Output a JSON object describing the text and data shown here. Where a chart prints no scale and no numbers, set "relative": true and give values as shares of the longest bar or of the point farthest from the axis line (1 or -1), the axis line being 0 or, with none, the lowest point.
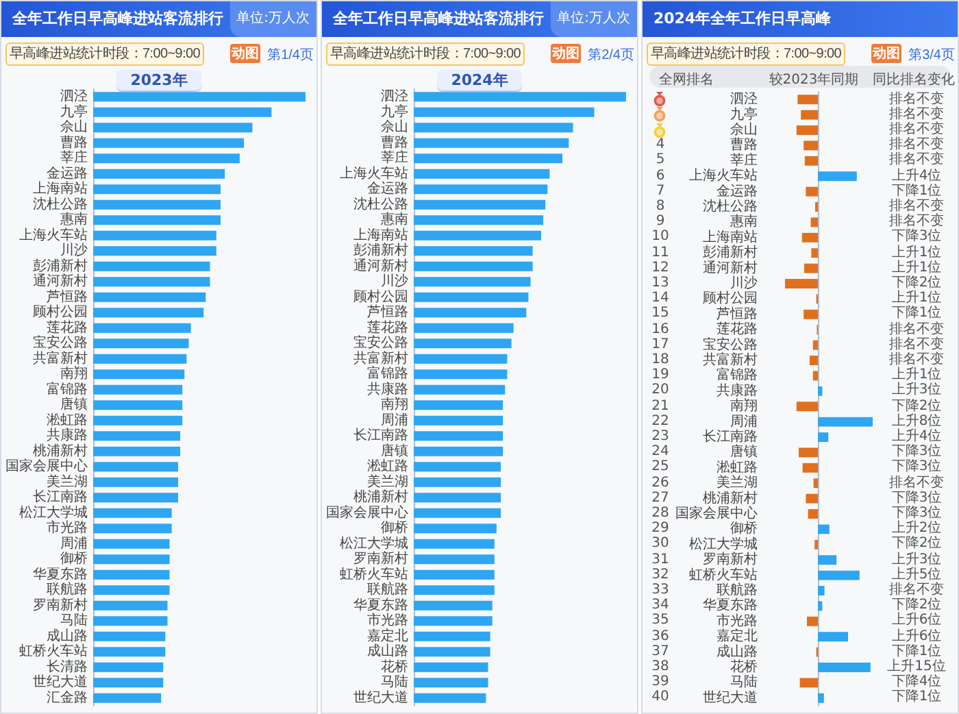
{
  "chart_data": [
    {
      "type": "bar",
      "orientation": "horizontal",
      "relative": true,
      "title": "全年工作日早高峰进站客流排行",
      "subtitle": "2023年",
      "annotations": [
        "单位:万人次",
        "早高峰进站统计时段：7:00~9:00",
        "动图",
        "第1/4页"
      ],
      "color": "#2ea6f2",
      "categories": [
        "泗泾",
        "九亭",
        "佘山",
        "曹路",
        "莘庄",
        "金运路",
        "上海南站",
        "沈杜公路",
        "惠南",
        "上海火车站",
        "川沙",
        "彭浦新村",
        "通河新村",
        "芦恒路",
        "顾村公园",
        "莲花路",
        "宝安公路",
        "共富新村",
        "南翔",
        "富锦路",
        "唐镇",
        "淞虹路",
        "共康路",
        "桃浦新村",
        "国家会展中心",
        "美兰湖",
        "长江南路",
        "松江大学城",
        "市光路",
        "周浦",
        "御桥",
        "华夏东路",
        "联航路",
        "罗南新村",
        "马陆",
        "成山路",
        "虹桥火车站",
        "长清路",
        "世纪大道",
        "汇金路"
      ],
      "values": [
        1,
        0.84,
        0.75,
        0.71,
        0.69,
        0.62,
        0.6,
        0.6,
        0.6,
        0.58,
        0.58,
        0.55,
        0.55,
        0.53,
        0.52,
        0.46,
        0.45,
        0.44,
        0.43,
        0.42,
        0.42,
        0.42,
        0.41,
        0.41,
        0.4,
        0.4,
        0.4,
        0.37,
        0.37,
        0.36,
        0.36,
        0.36,
        0.36,
        0.35,
        0.35,
        0.34,
        0.34,
        0.33,
        0.33,
        0.32
      ]
    },
    {
      "type": "bar",
      "orientation": "horizontal",
      "relative": true,
      "title": "全年工作日早高峰进站客流排行",
      "subtitle": "2024年",
      "annotations": [
        "单位:万人次",
        "早高峰进站统计时段：7:00~9:00",
        "动图",
        "第2/4页"
      ],
      "color": "#2ea6f2",
      "categories": [
        "泗泾",
        "九亭",
        "佘山",
        "曹路",
        "莘庄",
        "上海火车站",
        "金运路",
        "沈杜公路",
        "惠南",
        "上海南站",
        "彭浦新村",
        "通河新村",
        "川沙",
        "顾村公园",
        "芦恒路",
        "莲花路",
        "宝安公路",
        "共富新村",
        "富锦路",
        "共康路",
        "南翔",
        "周浦",
        "长江南路",
        "唐镇",
        "淞虹路",
        "美兰湖",
        "桃浦新村",
        "国家会展中心",
        "御桥",
        "松江大学城",
        "罗南新村",
        "虹桥火车站",
        "联航路",
        "华夏东路",
        "市光路",
        "嘉定北",
        "成山路",
        "花桥",
        "马陆",
        "世纪大道"
      ],
      "values": [
        1,
        0.85,
        0.75,
        0.73,
        0.7,
        0.64,
        0.63,
        0.62,
        0.61,
        0.6,
        0.56,
        0.56,
        0.55,
        0.54,
        0.53,
        0.47,
        0.46,
        0.44,
        0.44,
        0.43,
        0.42,
        0.42,
        0.42,
        0.42,
        0.41,
        0.41,
        0.41,
        0.41,
        0.39,
        0.38,
        0.38,
        0.38,
        0.38,
        0.37,
        0.37,
        0.36,
        0.36,
        0.35,
        0.35,
        0.34
      ]
    },
    {
      "type": "bar",
      "orientation": "horizontal",
      "relative": true,
      "title": "2024年全年工作日早高峰",
      "xlabel": "较2023年同期",
      "annotations": [
        "早高峰进站统计时段：7:00~9:00",
        "动图",
        "第3/4页",
        "全网排名",
        "同比排名变化",
        "排名不变",
        "排名不变",
        "排名不变",
        "排名不变",
        "排名不变",
        "上升4位",
        "下降1位",
        "排名不变",
        "排名不变",
        "下降3位",
        "上升1位",
        "上升1位",
        "下降2位",
        "上升1位",
        "下降1位",
        "排名不变",
        "排名不变",
        "排名不变",
        "上升1位",
        "上升3位",
        "下降2位",
        "上升8位",
        "上升4位",
        "下降3位",
        "下降3位",
        "排名不变",
        "下降3位",
        "下降3位",
        "上升2位",
        "下降2位",
        "上升3位",
        "上升5位",
        "排名不变",
        "下降2位",
        "上升6位",
        "上升6位",
        "下降1位",
        "上升15位",
        "下降4位",
        "下降1位",
        "4",
        "5",
        "6",
        "7",
        "8",
        "9",
        "10",
        "11",
        "12",
        "13",
        "14",
        "15",
        "16",
        "17",
        "18",
        "19",
        "20",
        "21",
        "22",
        "23",
        "24",
        "25",
        "26",
        "27",
        "28",
        "29",
        "30",
        "31",
        "32",
        "33",
        "34",
        "35",
        "36",
        "37",
        "38",
        "39",
        "40"
      ],
      "categories": [
        "泗泾",
        "九亭",
        "佘山",
        "曹路",
        "莘庄",
        "上海火车站",
        "金运路",
        "沈杜公路",
        "惠南",
        "上海南站",
        "彭浦新村",
        "通河新村",
        "川沙",
        "顾村公园",
        "芦恒路",
        "莲花路",
        "宝安公路",
        "共富新村",
        "富锦路",
        "共康路",
        "南翔",
        "周浦",
        "长江南路",
        "唐镇",
        "淞虹路",
        "美兰湖",
        "桃浦新村",
        "国家会展中心",
        "御桥",
        "松江大学城",
        "罗南新村",
        "虹桥火车站",
        "联航路",
        "华夏东路",
        "市光路",
        "嘉定北",
        "成山路",
        "花桥",
        "马陆",
        "世纪大道"
      ],
      "values": [
        -0.37,
        -0.31,
        -0.39,
        -0.26,
        -0.24,
        0.71,
        -0.22,
        -0.05,
        -0.13,
        -0.29,
        -0.12,
        -0.25,
        -0.6,
        -0.03,
        -0.26,
        -0.02,
        -0.09,
        -0.15,
        -0.09,
        0.08,
        -0.39,
        1,
        0.19,
        -0.35,
        -0.28,
        -0.08,
        -0.22,
        -0.18,
        0.21,
        -0.06,
        0.34,
        0.76,
        0.12,
        0.08,
        -0.2,
        0.55,
        -0.03,
        0.96,
        -0.33,
        0.11
      ],
      "colors": [
        "#e0701e",
        "#e0701e",
        "#e0701e",
        "#e0701e",
        "#e0701e",
        "#2ea6f2",
        "#e0701e",
        "#e0701e",
        "#e0701e",
        "#e0701e",
        "#e0701e",
        "#e0701e",
        "#e0701e",
        "#e0701e",
        "#e0701e",
        "#e0701e",
        "#e0701e",
        "#e0701e",
        "#e0701e",
        "#2ea6f2",
        "#e0701e",
        "#2ea6f2",
        "#2ea6f2",
        "#e0701e",
        "#e0701e",
        "#e0701e",
        "#e0701e",
        "#e0701e",
        "#2ea6f2",
        "#e0701e",
        "#2ea6f2",
        "#2ea6f2",
        "#2ea6f2",
        "#2ea6f2",
        "#e0701e",
        "#2ea6f2",
        "#e0701e",
        "#2ea6f2",
        "#e0701e",
        "#2ea6f2"
      ]
    }
  ]
}
